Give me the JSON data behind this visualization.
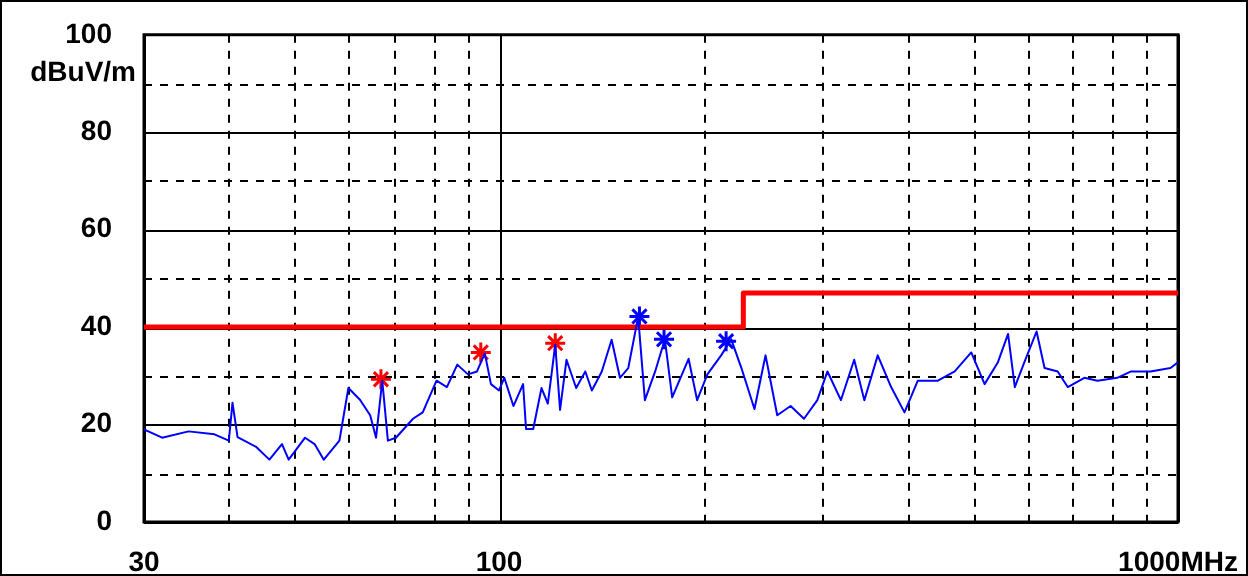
{
  "chart_data": {
    "type": "line",
    "ylabel": "dBuV/m",
    "log": "x",
    "xlim": [
      30,
      1000
    ],
    "ylim": [
      0,
      100
    ],
    "xticks": [
      30,
      {
        "value": 40,
        "label": null
      },
      {
        "value": 50,
        "label": null
      },
      {
        "value": 60,
        "label": null
      },
      {
        "value": 70,
        "label": null
      },
      {
        "value": 80,
        "label": null
      },
      {
        "value": 90,
        "label": null
      },
      100,
      {
        "value": 200,
        "label": null
      },
      {
        "value": 300,
        "label": null
      },
      {
        "value": 400,
        "label": null
      },
      {
        "value": 500,
        "label": null
      },
      {
        "value": 600,
        "label": null
      },
      {
        "value": 700,
        "label": null
      },
      {
        "value": 800,
        "label": null
      },
      {
        "value": 900,
        "label": null
      },
      {
        "value": 1000,
        "label": "1000MHz"
      }
    ],
    "yticks": [
      0,
      {
        "value": 10,
        "label": null
      },
      20,
      {
        "value": 30,
        "label": null
      },
      40,
      {
        "value": 50,
        "label": null
      },
      60,
      {
        "value": 70,
        "label": null
      },
      80,
      {
        "value": 90,
        "label": null
      },
      100
    ],
    "grid": true,
    "legend": false,
    "line_style": "solid",
    "series": [
      {
        "color": "#0000ff",
        "marker": "none",
        "x": [
          30,
          31.9,
          34.9,
          38.1,
          40,
          40.5,
          41.2,
          43.9,
          45.9,
          47.9,
          49,
          51.8,
          53.5,
          55.2,
          58.2,
          60,
          62.4,
          64.6,
          65.9,
          67.3,
          68.6,
          70.5,
          74.7,
          77.2,
          80.9,
          83.8,
          86.8,
          90,
          92.8,
          95.3,
          97.3,
          100,
          101.8,
          105,
          108.5,
          109.6,
          112.3,
          115.5,
          118,
          121,
          123,
          125.7,
          129.9,
          134,
          137,
          141.7,
          146.5,
          150.7,
          155,
          160.3,
          164,
          169.8,
          175.5,
          179.9,
          190.2,
          195.8,
          202.7,
          212.4,
          219.8,
          227.5,
          237.8,
          246.9,
          256.9,
          268.8,
          281.3,
          294.3,
          304.6,
          318.8,
          333.5,
          345.2,
          361.2,
          378,
          395.5,
          413.8,
          443,
          469,
          496,
          519,
          543,
          562,
          575,
          594,
          619,
          636,
          665,
          688,
          728,
          761,
          814,
          853,
          911,
          975,
          1000
        ],
        "values": [
          19,
          17.3,
          18.6,
          18,
          16.7,
          24.5,
          17.4,
          15.4,
          12.8,
          16,
          12.8,
          17.3,
          16,
          12.8,
          16.7,
          27.5,
          25.1,
          21.9,
          17.3,
          29,
          16.7,
          17.3,
          21.2,
          22.5,
          29,
          27.7,
          32.3,
          30.3,
          30.9,
          34.6,
          28.3,
          27,
          29.6,
          23.8,
          28.3,
          19.1,
          19.1,
          27.5,
          24.3,
          36.4,
          23,
          33.3,
          27.5,
          30.9,
          27,
          30.9,
          37.4,
          29.6,
          31.6,
          42.1,
          25,
          30.9,
          37.5,
          25.6,
          33.5,
          25,
          30.3,
          34.2,
          37.5,
          31.6,
          23.2,
          34.2,
          21.9,
          23.8,
          21.2,
          25,
          30.9,
          25,
          33.3,
          25,
          34.2,
          27.7,
          22.5,
          29,
          29,
          30.9,
          34.8,
          28.3,
          32.8,
          38.6,
          27.7,
          32.8,
          39.1,
          31.6,
          30.9,
          27.7,
          29.6,
          29,
          29.6,
          30.9,
          30.9,
          31.6,
          32.8
        ]
      },
      {
        "color": "#ff0000",
        "marker": "none",
        "x": [
          30,
          229,
          229,
          1000
        ],
        "values": [
          40,
          40,
          47,
          47
        ]
      },
      {
        "type": "scatter",
        "color": "#ff0000",
        "marker": "cross",
        "x": [
          67,
          94,
          121
        ],
        "values": [
          29.3,
          34.8,
          36.7
        ]
      },
      {
        "type": "scatter",
        "color": "#0000ff",
        "marker": "cross",
        "x": [
          161,
          175,
          216
        ],
        "values": [
          42.2,
          37.5,
          37.1
        ]
      }
    ]
  }
}
